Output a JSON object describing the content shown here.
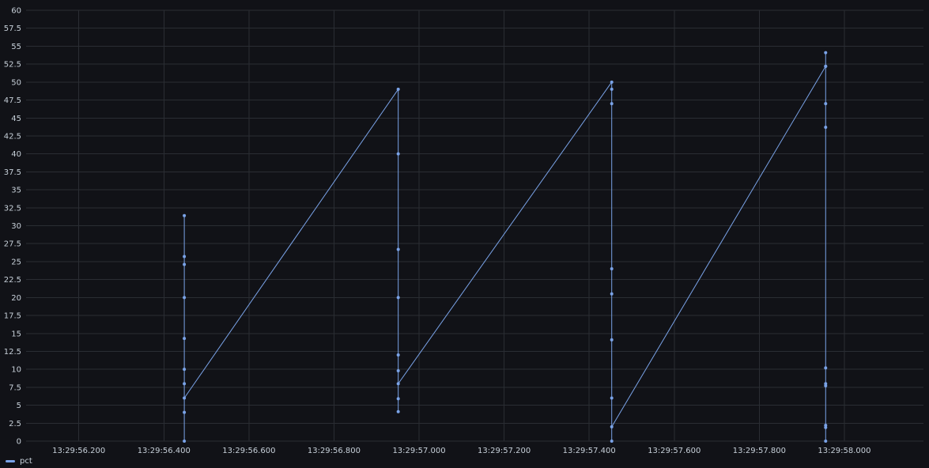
{
  "colors": {
    "background": "#111217",
    "grid": "#2a2d33",
    "series": "#7aa3e8",
    "text": "#c7d0d9"
  },
  "chart_data": {
    "type": "line",
    "title": "",
    "xlabel": "",
    "ylabel": "",
    "ylim": [
      0,
      60
    ],
    "yticks": [
      0,
      2.5,
      5,
      7.5,
      10,
      12.5,
      15,
      17.5,
      20,
      22.5,
      25,
      27.5,
      30,
      32.5,
      35,
      37.5,
      40,
      42.5,
      45,
      47.5,
      50,
      52.5,
      55,
      57.5,
      60
    ],
    "xlim": [
      "13:29:56.076",
      "13:29:58.186"
    ],
    "xticks": [
      "13:29:56.200",
      "13:29:56.400",
      "13:29:56.600",
      "13:29:56.800",
      "13:29:57.000",
      "13:29:57.200",
      "13:29:57.400",
      "13:29:57.600",
      "13:29:57.800",
      "13:29:58.000"
    ],
    "grid": true,
    "legend": "bottom-left",
    "series": [
      {
        "name": "pct",
        "points": [
          {
            "x": "13:29:56.448",
            "y": 0
          },
          {
            "x": "13:29:56.448",
            "y": 4
          },
          {
            "x": "13:29:56.448",
            "y": 8
          },
          {
            "x": "13:29:56.448",
            "y": 10
          },
          {
            "x": "13:29:56.448",
            "y": 14.3
          },
          {
            "x": "13:29:56.448",
            "y": 20
          },
          {
            "x": "13:29:56.448",
            "y": 24.6
          },
          {
            "x": "13:29:56.448",
            "y": 25.7
          },
          {
            "x": "13:29:56.448",
            "y": 31.4
          },
          {
            "x": "13:29:56.448",
            "y": 6
          },
          {
            "x": "13:29:56.951",
            "y": 49
          },
          {
            "x": "13:29:56.951",
            "y": 40
          },
          {
            "x": "13:29:56.951",
            "y": 26.7
          },
          {
            "x": "13:29:56.951",
            "y": 20
          },
          {
            "x": "13:29:56.951",
            "y": 12
          },
          {
            "x": "13:29:56.951",
            "y": 9.8
          },
          {
            "x": "13:29:56.951",
            "y": 5.9
          },
          {
            "x": "13:29:56.951",
            "y": 4.1
          },
          {
            "x": "13:29:56.951",
            "y": 8
          },
          {
            "x": "13:29:57.453",
            "y": 50
          },
          {
            "x": "13:29:57.453",
            "y": 49
          },
          {
            "x": "13:29:57.453",
            "y": 47
          },
          {
            "x": "13:29:57.453",
            "y": 24
          },
          {
            "x": "13:29:57.453",
            "y": 20.5
          },
          {
            "x": "13:29:57.453",
            "y": 14.1
          },
          {
            "x": "13:29:57.453",
            "y": 6
          },
          {
            "x": "13:29:57.453",
            "y": 0
          },
          {
            "x": "13:29:57.453",
            "y": 2
          },
          {
            "x": "13:29:57.956",
            "y": 52.2
          },
          {
            "x": "13:29:57.956",
            "y": 54.1
          },
          {
            "x": "13:29:57.956",
            "y": 52.2
          },
          {
            "x": "13:29:57.956",
            "y": 47
          },
          {
            "x": "13:29:57.956",
            "y": 43.7
          },
          {
            "x": "13:29:57.956",
            "y": 10.2
          },
          {
            "x": "13:29:57.956",
            "y": 8
          },
          {
            "x": "13:29:57.956",
            "y": 7.7
          },
          {
            "x": "13:29:57.956",
            "y": 2.2
          },
          {
            "x": "13:29:57.956",
            "y": 1.9
          },
          {
            "x": "13:29:57.956",
            "y": 0
          }
        ]
      }
    ]
  },
  "legend": {
    "label": "pct"
  }
}
